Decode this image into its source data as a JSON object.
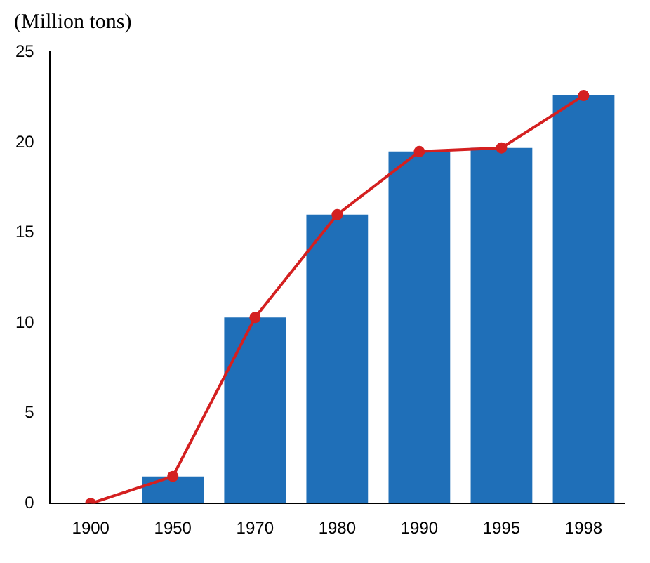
{
  "chart_data": {
    "type": "bar",
    "ylabel": "(Million tons)",
    "categories": [
      "1900",
      "1950",
      "1970",
      "1980",
      "1990",
      "1995",
      "1998"
    ],
    "series": [
      {
        "color": "#1f6fb8",
        "values": [
          0,
          1.5,
          10.3,
          16,
          19.5,
          19.7,
          22.6
        ]
      },
      {
        "type": "line",
        "color": "#d42020",
        "values": [
          0,
          1.5,
          10.3,
          16,
          19.5,
          19.7,
          22.6
        ]
      }
    ],
    "ylim": [
      0,
      25
    ],
    "yticks": [
      0,
      5,
      10,
      15,
      20,
      25
    ],
    "grid": false,
    "legend": false,
    "marker": "circle",
    "line_style": "solid"
  }
}
